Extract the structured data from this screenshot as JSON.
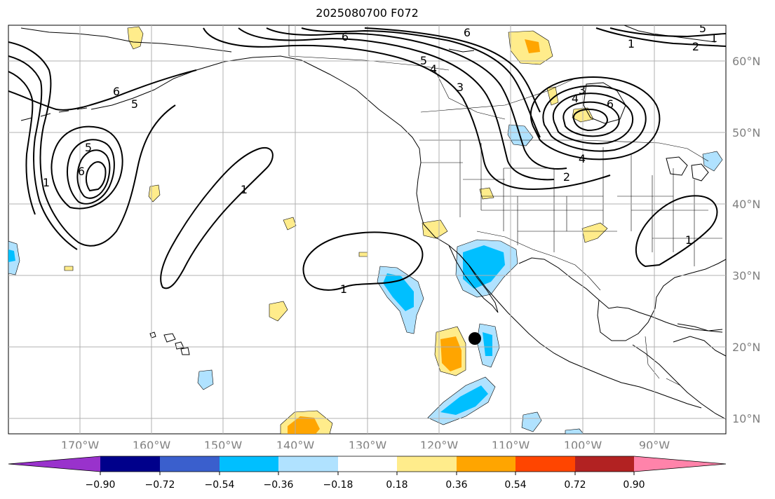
{
  "title": "2025080700 F072",
  "map": {
    "lon_labels": [
      "170°W",
      "160°W",
      "150°W",
      "140°W",
      "130°W",
      "120°W",
      "110°W",
      "100°W",
      "90°W"
    ],
    "lat_labels": [
      "60°N",
      "50°N",
      "40°N",
      "30°N",
      "20°N",
      "10°N"
    ],
    "contour_labels": [
      "6",
      "6",
      "5",
      "4",
      "3",
      "5",
      "4",
      "3",
      "6",
      "4",
      "2",
      "1",
      "1",
      "6",
      "5",
      "5",
      "6",
      "1",
      "1",
      "1",
      "1",
      "2"
    ],
    "marker": "storm-location-marker"
  },
  "colorbar": {
    "ticks": [
      "−0.90",
      "−0.72",
      "−0.54",
      "−0.36",
      "−0.18",
      "0.18",
      "0.36",
      "0.54",
      "0.72",
      "0.90"
    ],
    "colors": [
      "#9932cc",
      "#00008b",
      "#3a5fcd",
      "#00bfff",
      "#b0e2ff",
      "#ffffff",
      "#ffec8b",
      "#ffa500",
      "#ff4500",
      "#b22222",
      "#ff83aa"
    ]
  },
  "colors": {
    "grid": "#b0b0b0",
    "axis_label": "#808080",
    "ocean": "#ffffff"
  }
}
